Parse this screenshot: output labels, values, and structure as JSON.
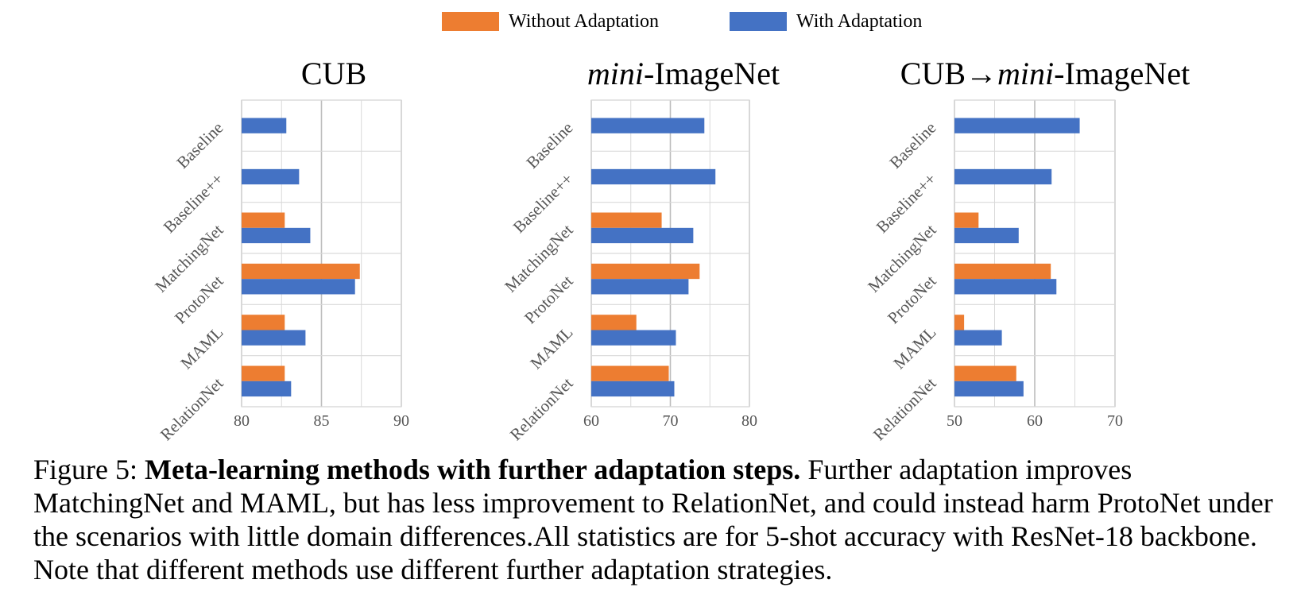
{
  "colors": {
    "without": "#ED7D31",
    "with": "#4472C4",
    "grid": "#d9d9d9",
    "axis": "#bfbfbf"
  },
  "legend": {
    "without_label": "Without Adaptation",
    "with_label": "With Adaptation"
  },
  "chart_data": [
    {
      "type": "bar",
      "orientation": "horizontal",
      "title_parts": [
        "CUB"
      ],
      "categories": [
        "Baseline",
        "Baseline++",
        "MatchingNet",
        "ProtoNet",
        "MAML",
        "RelationNet"
      ],
      "xlim": [
        80,
        90
      ],
      "xticks": [
        80,
        85,
        90
      ],
      "grid": true,
      "legend_position": "top",
      "series": [
        {
          "name": "Without Adaptation",
          "values": [
            null,
            null,
            82.7,
            87.4,
            82.7,
            82.7
          ]
        },
        {
          "name": "With Adaptation",
          "values": [
            82.8,
            83.6,
            84.3,
            87.1,
            84.0,
            83.1
          ]
        }
      ]
    },
    {
      "type": "bar",
      "orientation": "horizontal",
      "title_parts": [
        "mini",
        "-ImageNet"
      ],
      "categories": [
        "Baseline",
        "Baseline++",
        "MatchingNet",
        "ProtoNet",
        "MAML",
        "RelationNet"
      ],
      "xlim": [
        60,
        80
      ],
      "xticks": [
        60,
        70,
        80
      ],
      "grid": true,
      "legend_position": "top",
      "series": [
        {
          "name": "Without Adaptation",
          "values": [
            null,
            null,
            68.9,
            73.7,
            65.7,
            69.8
          ]
        },
        {
          "name": "With Adaptation",
          "values": [
            74.3,
            75.7,
            72.9,
            72.3,
            70.7,
            70.5
          ]
        }
      ]
    },
    {
      "type": "bar",
      "orientation": "horizontal",
      "title_parts": [
        "CUB→",
        "mini",
        "-ImageNet"
      ],
      "categories": [
        "Baseline",
        "Baseline++",
        "MatchingNet",
        "ProtoNet",
        "MAML",
        "RelationNet"
      ],
      "xlim": [
        50,
        70
      ],
      "xticks": [
        50,
        60,
        70
      ],
      "grid": true,
      "legend_position": "top",
      "series": [
        {
          "name": "Without Adaptation",
          "values": [
            null,
            null,
            53.0,
            62.0,
            51.2,
            57.7
          ]
        },
        {
          "name": "With Adaptation",
          "values": [
            65.6,
            62.1,
            58.0,
            62.7,
            55.9,
            58.6
          ]
        }
      ]
    }
  ],
  "caption": {
    "label": "Figure 5: ",
    "bold": "Meta-learning methods with further adaptation steps.",
    "text": " Further adaptation improves MatchingNet and MAML, but has less improvement to RelationNet, and could instead harm ProtoNet under the scenarios with little domain differences.All statistics are for 5-shot accuracy with ResNet-18 backbone. Note that different methods use different further adaptation strategies."
  }
}
